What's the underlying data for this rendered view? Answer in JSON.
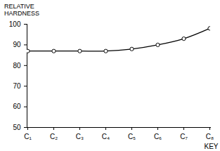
{
  "chart_data": {
    "type": "line",
    "y_label": "RELATIVE\nHARDNESS",
    "x_label": "KEY",
    "categories": [
      "C₁",
      "C₂",
      "C₃",
      "C₄",
      "C₅",
      "C₆",
      "C₇",
      "C₈"
    ],
    "values": [
      87,
      87,
      87,
      87,
      88,
      90,
      93,
      98
    ],
    "color": "#000000",
    "marker": "circle",
    "line_style": "solid",
    "ylim": [
      50,
      100
    ],
    "yticks": [
      50,
      60,
      70,
      80,
      90,
      100
    ],
    "grid": false
  }
}
